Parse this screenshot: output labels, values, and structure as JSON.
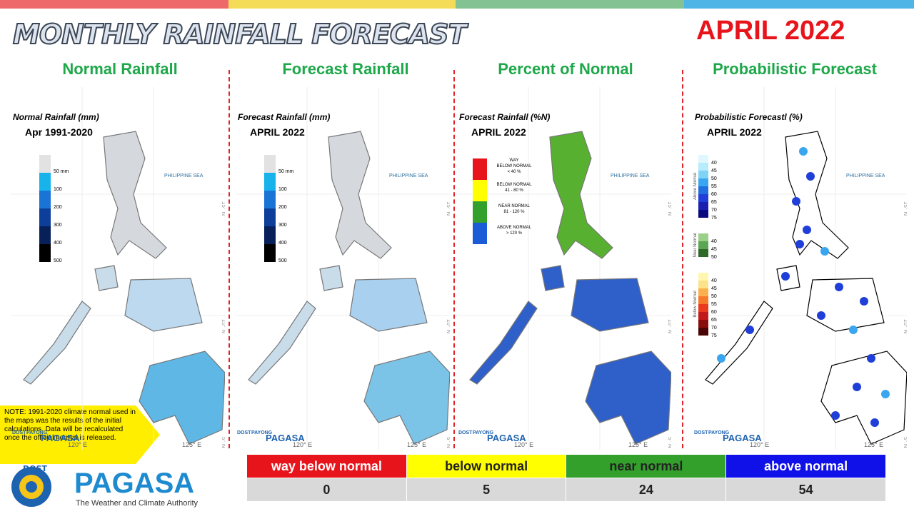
{
  "header": {
    "title": "MONTHLY RAINFALL FORECAST",
    "month": "APRIL 2022"
  },
  "panels": [
    {
      "heading": "Normal Rainfall",
      "map_title": "Normal Rainfall (mm)",
      "map_subtitle": "Apr 1991-2020",
      "legend": [
        "50 mm",
        "100",
        "200",
        "300",
        "400",
        "500"
      ]
    },
    {
      "heading": "Forecast Rainfall",
      "map_title": "Forecast Rainfall (mm)",
      "map_subtitle": "APRIL 2022",
      "legend": [
        "50 mm",
        "100",
        "200",
        "300",
        "400",
        "500"
      ]
    },
    {
      "heading": "Percent of Normal",
      "map_title": "Forecast Rainfall (%N)",
      "map_subtitle": "APRIL 2022",
      "legend": [
        [
          "WAY",
          "BELOW NORMAL",
          "< 40 %"
        ],
        [
          "BELOW NORMAL",
          "41 - 80 %"
        ],
        [
          "NEAR NORMAL",
          "81 - 120 %"
        ],
        [
          "ABOVE NORMAL",
          "> 120 %"
        ]
      ]
    },
    {
      "heading": "Probabilistic Forecast",
      "map_title": "Probabilistic Forecastl (%)",
      "map_subtitle": "APRIL 2022",
      "legend": [
        {
          "label": "Above Normal",
          "ticks": [
            "40",
            "45",
            "50",
            "55",
            "60",
            "65",
            "70",
            "75"
          ]
        },
        {
          "label": "Near Normal",
          "ticks": [
            "40",
            "45",
            "50"
          ]
        },
        {
          "label": "Below Normal",
          "ticks": [
            "40",
            "45",
            "50",
            "55",
            "60",
            "65",
            "70",
            "75"
          ]
        }
      ]
    }
  ],
  "map_labels": {
    "sea": "PHILIPPINE SEA",
    "lat": [
      "15° N",
      "10° N",
      "5° N"
    ],
    "lon": [
      "120° E",
      "125° E"
    ],
    "brand": [
      "DOST",
      "PAYONG",
      "PAGASA"
    ]
  },
  "note": "NOTE: 1991-2020 climate normal used in the maps was the results of the initial calculations. Data will be recalculated once the official normal is released.",
  "summary_table": {
    "headers": [
      "way below normal",
      "below normal",
      "near normal",
      "above normal"
    ],
    "counts": [
      0,
      5,
      24,
      54
    ]
  },
  "logo": {
    "dost": "DOST",
    "name": "PAGASA",
    "tagline": "The Weather and Climate Authority"
  }
}
